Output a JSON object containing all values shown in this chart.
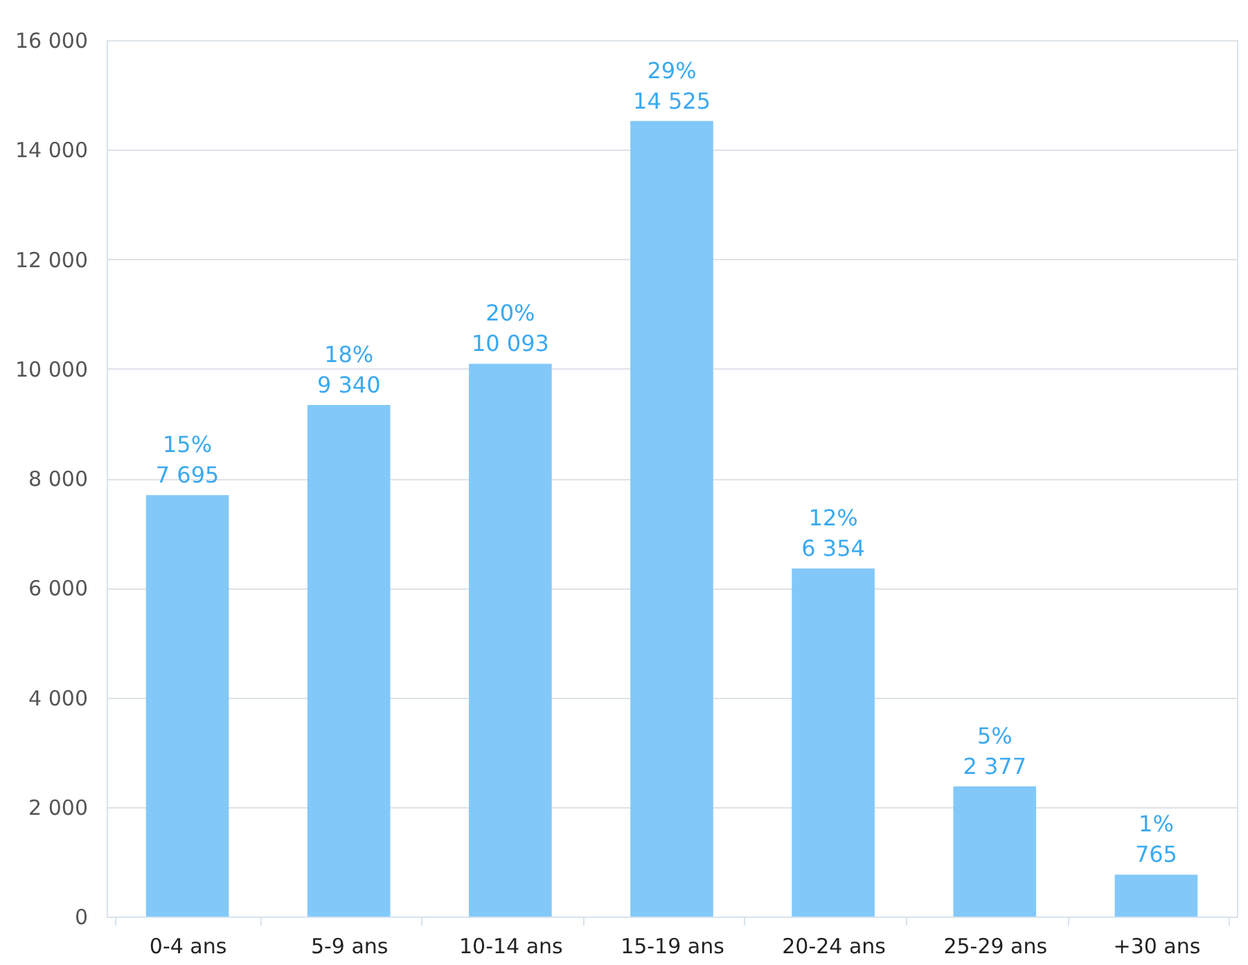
{
  "chart_data": {
    "type": "bar",
    "categories": [
      "0-4 ans",
      "5-9 ans",
      "10-14 ans",
      "15-19 ans",
      "20-24 ans",
      "25-29 ans",
      "+30 ans"
    ],
    "values": [
      7695,
      9340,
      10093,
      14525,
      6354,
      2377,
      765
    ],
    "value_labels": [
      "15%\n7 695",
      "18%\n9 340",
      "20%\n10 093",
      "29%\n14 525",
      "12%\n6 354",
      "5%\n2 377",
      "1%\n765"
    ],
    "color": "#82c8f9",
    "ylim": [
      0,
      16000
    ],
    "yticks": [
      0,
      {
        "value": 2000,
        "label": "2 000"
      },
      {
        "value": 4000,
        "label": "4 000"
      },
      {
        "value": 6000,
        "label": "6 000"
      },
      {
        "value": 8000,
        "label": "8 000"
      },
      {
        "value": 10000,
        "label": "10 000"
      },
      {
        "value": 12000,
        "label": "12 000"
      },
      {
        "value": 14000,
        "label": "14 000"
      },
      {
        "value": 16000,
        "label": "16 000"
      }
    ],
    "grid": "y"
  }
}
